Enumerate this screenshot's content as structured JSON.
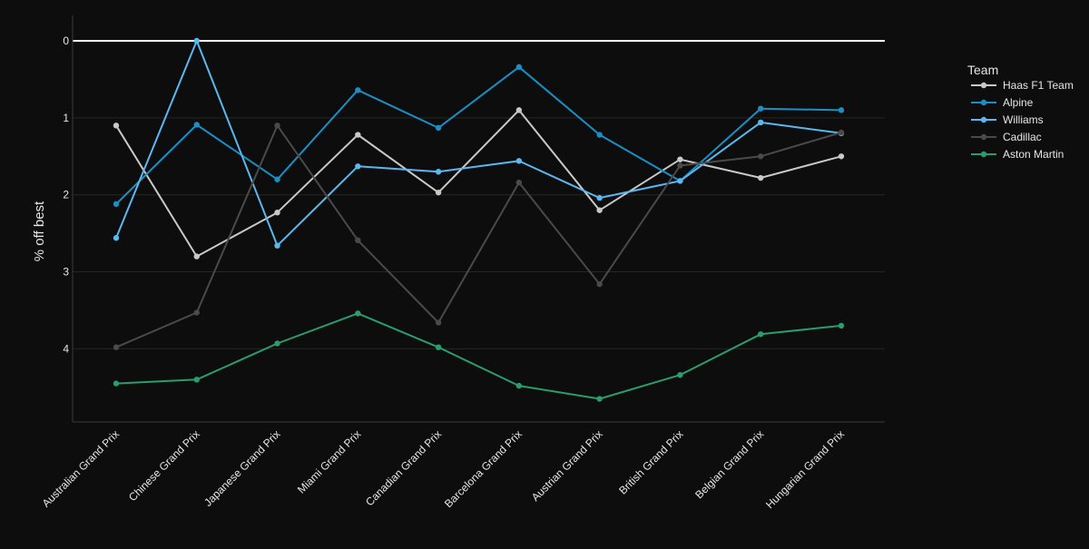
{
  "chart_data": {
    "type": "line",
    "title": "",
    "xlabel": "",
    "ylabel": "% off best",
    "y_reversed": true,
    "ylim": [
      0,
      4.95
    ],
    "yticks": [
      0,
      1,
      2,
      3,
      4
    ],
    "grid": true,
    "legend_title": "Team",
    "legend_position": "right",
    "categories": [
      "Australian Grand Prix",
      "Chinese Grand Prix",
      "Japanese Grand Prix",
      "Miami Grand Prix",
      "Canadian Grand Prix",
      "Barcelona Grand Prix",
      "Austrian Grand Prix",
      "British Grand Prix",
      "Belgian Grand Prix",
      "Hungarian Grand Prix"
    ],
    "series": [
      {
        "name": "Haas F1 Team",
        "color": "#c8c8c8",
        "values": [
          1.1,
          2.8,
          2.23,
          1.22,
          1.97,
          0.9,
          2.2,
          1.54,
          1.78,
          1.5
        ]
      },
      {
        "name": "Alpine",
        "color": "#1a8fc4",
        "values": [
          2.12,
          1.09,
          1.8,
          0.64,
          1.13,
          0.34,
          1.22,
          1.82,
          0.88,
          0.9
        ]
      },
      {
        "name": "Williams",
        "color": "#5ab8f0",
        "values": [
          2.56,
          0.0,
          2.66,
          1.63,
          1.7,
          1.56,
          2.04,
          1.82,
          1.06,
          1.2
        ]
      },
      {
        "name": "Cadillac",
        "color": "#4a4a4a",
        "values": [
          3.98,
          3.53,
          1.1,
          2.59,
          3.66,
          1.84,
          3.16,
          1.62,
          1.5,
          1.19
        ]
      },
      {
        "name": "Aston Martin",
        "color": "#2a9d6e",
        "values": [
          4.45,
          4.4,
          3.93,
          3.54,
          3.98,
          4.48,
          4.65,
          4.34,
          3.81,
          3.7
        ]
      }
    ]
  }
}
